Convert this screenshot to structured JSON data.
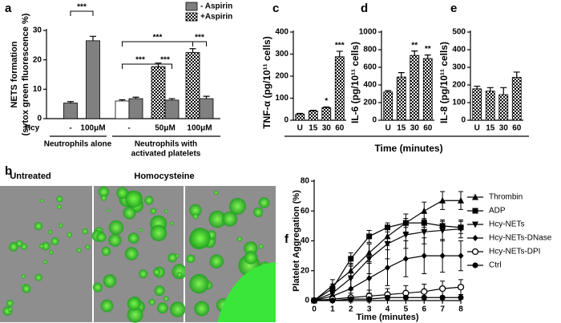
{
  "panel_labels": [
    "a",
    "b",
    "c",
    "d",
    "e",
    "f"
  ],
  "micrographs": {
    "labels": [
      "Untreated",
      "Homocysteine"
    ]
  },
  "chart_data": [
    {
      "type": "grouped-bar",
      "ylabel": [
        "NETS formation",
        "(sytox green fluorescence %)"
      ],
      "hcy_label": "Hcy",
      "categories": [
        "-",
        "100μM",
        "-",
        "50μM",
        "100μM"
      ],
      "groups": [
        "Neutrophils alone",
        "Neutrophils with",
        "activated platelets"
      ],
      "series": [
        {
          "name": "- Aspirin",
          "color": "#808080",
          "values": [
            5.3,
            26.5,
            6.8,
            6.3,
            6.8
          ],
          "errors": [
            0.5,
            1.5,
            0.5,
            0.5,
            0.8
          ]
        },
        {
          "name": "+Aspirin",
          "color": "#000000",
          "pattern": "checker",
          "values": [
            null,
            null,
            null,
            17.7,
            22.5
          ],
          "errors": [
            null,
            null,
            null,
            1.2,
            1.3
          ]
        },
        {
          "color": "#ffffff",
          "values": [
            null,
            null,
            6.0,
            null,
            null
          ],
          "errors": [
            null,
            null,
            0.4,
            null,
            null
          ]
        }
      ],
      "significance": [
        "***",
        "***",
        "***",
        "***",
        "***"
      ],
      "ylim": [
        0,
        30
      ],
      "yticks": [
        0,
        10,
        20,
        30
      ],
      "legend": "upper right"
    },
    {
      "type": "bar",
      "ylabel": "TNF-α (pg/10¹¹ cells)",
      "categories": [
        "U",
        "15",
        "30",
        "60"
      ],
      "values": [
        28,
        42,
        57,
        288
      ],
      "errors": [
        3,
        3,
        3,
        25
      ],
      "color": "#000000",
      "pattern": "checker",
      "ylim": [
        0,
        400
      ],
      "yticks": [
        0,
        100,
        200,
        300,
        400
      ],
      "significance": [
        {
          "category": 2,
          "text": "*"
        },
        {
          "category": 3,
          "text": "***"
        }
      ]
    },
    {
      "type": "bar",
      "ylabel": "IL-6 (pg/10¹¹ cells)",
      "categories": [
        "U",
        "15",
        "30",
        "60"
      ],
      "values": [
        320,
        490,
        735,
        700
      ],
      "errors": [
        15,
        50,
        50,
        40
      ],
      "color": "#000000",
      "pattern": "checker",
      "ylim": [
        0,
        1000
      ],
      "yticks": [
        0,
        200,
        400,
        600,
        800,
        1000
      ],
      "significance": [
        {
          "category": 2,
          "text": "**"
        },
        {
          "category": 3,
          "text": "**"
        }
      ]
    },
    {
      "type": "bar",
      "ylabel": "IL-8 (pg/10¹¹ cells)",
      "categories": [
        "U",
        "15",
        "30",
        "60"
      ],
      "values": [
        178,
        165,
        145,
        243
      ],
      "errors": [
        15,
        20,
        40,
        30
      ],
      "color": "#000000",
      "pattern": "checker",
      "ylim": [
        0,
        500
      ],
      "yticks": [
        0,
        100,
        200,
        300,
        400,
        500
      ],
      "xlabel": "Time (minutes)",
      "significance": []
    },
    {
      "type": "line",
      "xlabel": "Time (minutes)",
      "ylabel": "Platelet Aggregation (%)",
      "x": [
        0,
        1,
        2,
        3,
        4,
        5,
        6,
        7,
        8
      ],
      "xlim": [
        0,
        8
      ],
      "xticks": [
        0,
        1,
        2,
        3,
        4,
        5,
        6,
        7,
        8
      ],
      "ylim": [
        0,
        80
      ],
      "yticks": [
        0,
        20,
        40,
        60,
        80
      ],
      "legend": "right",
      "series": [
        {
          "name": "Thrombin",
          "marker": "triangle-up",
          "color": "#000000",
          "values": [
            0,
            10,
            20,
            32,
            43,
            52,
            60,
            67,
            67
          ],
          "errors": [
            0,
            4,
            5,
            6,
            6,
            6,
            6,
            6,
            6
          ]
        },
        {
          "name": "ADP",
          "marker": "square",
          "color": "#000000",
          "values": [
            0,
            8,
            28,
            43,
            49,
            52,
            52,
            50,
            49
          ],
          "errors": [
            0,
            3,
            4,
            4,
            3,
            3,
            3,
            3,
            4
          ]
        },
        {
          "name": "Hcy-NETs",
          "marker": "triangle-down",
          "color": "#000000",
          "values": [
            0,
            5,
            15,
            28,
            38,
            44,
            46,
            47,
            48
          ],
          "errors": [
            0,
            4,
            8,
            10,
            10,
            9,
            8,
            7,
            6
          ]
        },
        {
          "name": "Hcy-NETs-DNase",
          "marker": "diamond",
          "color": "#000000",
          "values": [
            0,
            3,
            8,
            15,
            22,
            28,
            30,
            30,
            30
          ],
          "errors": [
            0,
            4,
            8,
            10,
            12,
            12,
            12,
            11,
            10
          ]
        },
        {
          "name": "Hcy-NETs-DPI",
          "marker": "circle-open",
          "color": "#000000",
          "values": [
            0,
            1,
            2,
            3,
            4,
            5,
            6,
            8,
            9
          ],
          "errors": [
            0,
            2,
            3,
            4,
            4,
            5,
            5,
            5,
            5
          ]
        },
        {
          "name": "Ctrl",
          "marker": "circle",
          "color": "#000000",
          "values": [
            0,
            0,
            1,
            1,
            2,
            2,
            2,
            2,
            2
          ],
          "errors": [
            0,
            1,
            1,
            1,
            1,
            1,
            1,
            1,
            1
          ]
        }
      ]
    }
  ]
}
